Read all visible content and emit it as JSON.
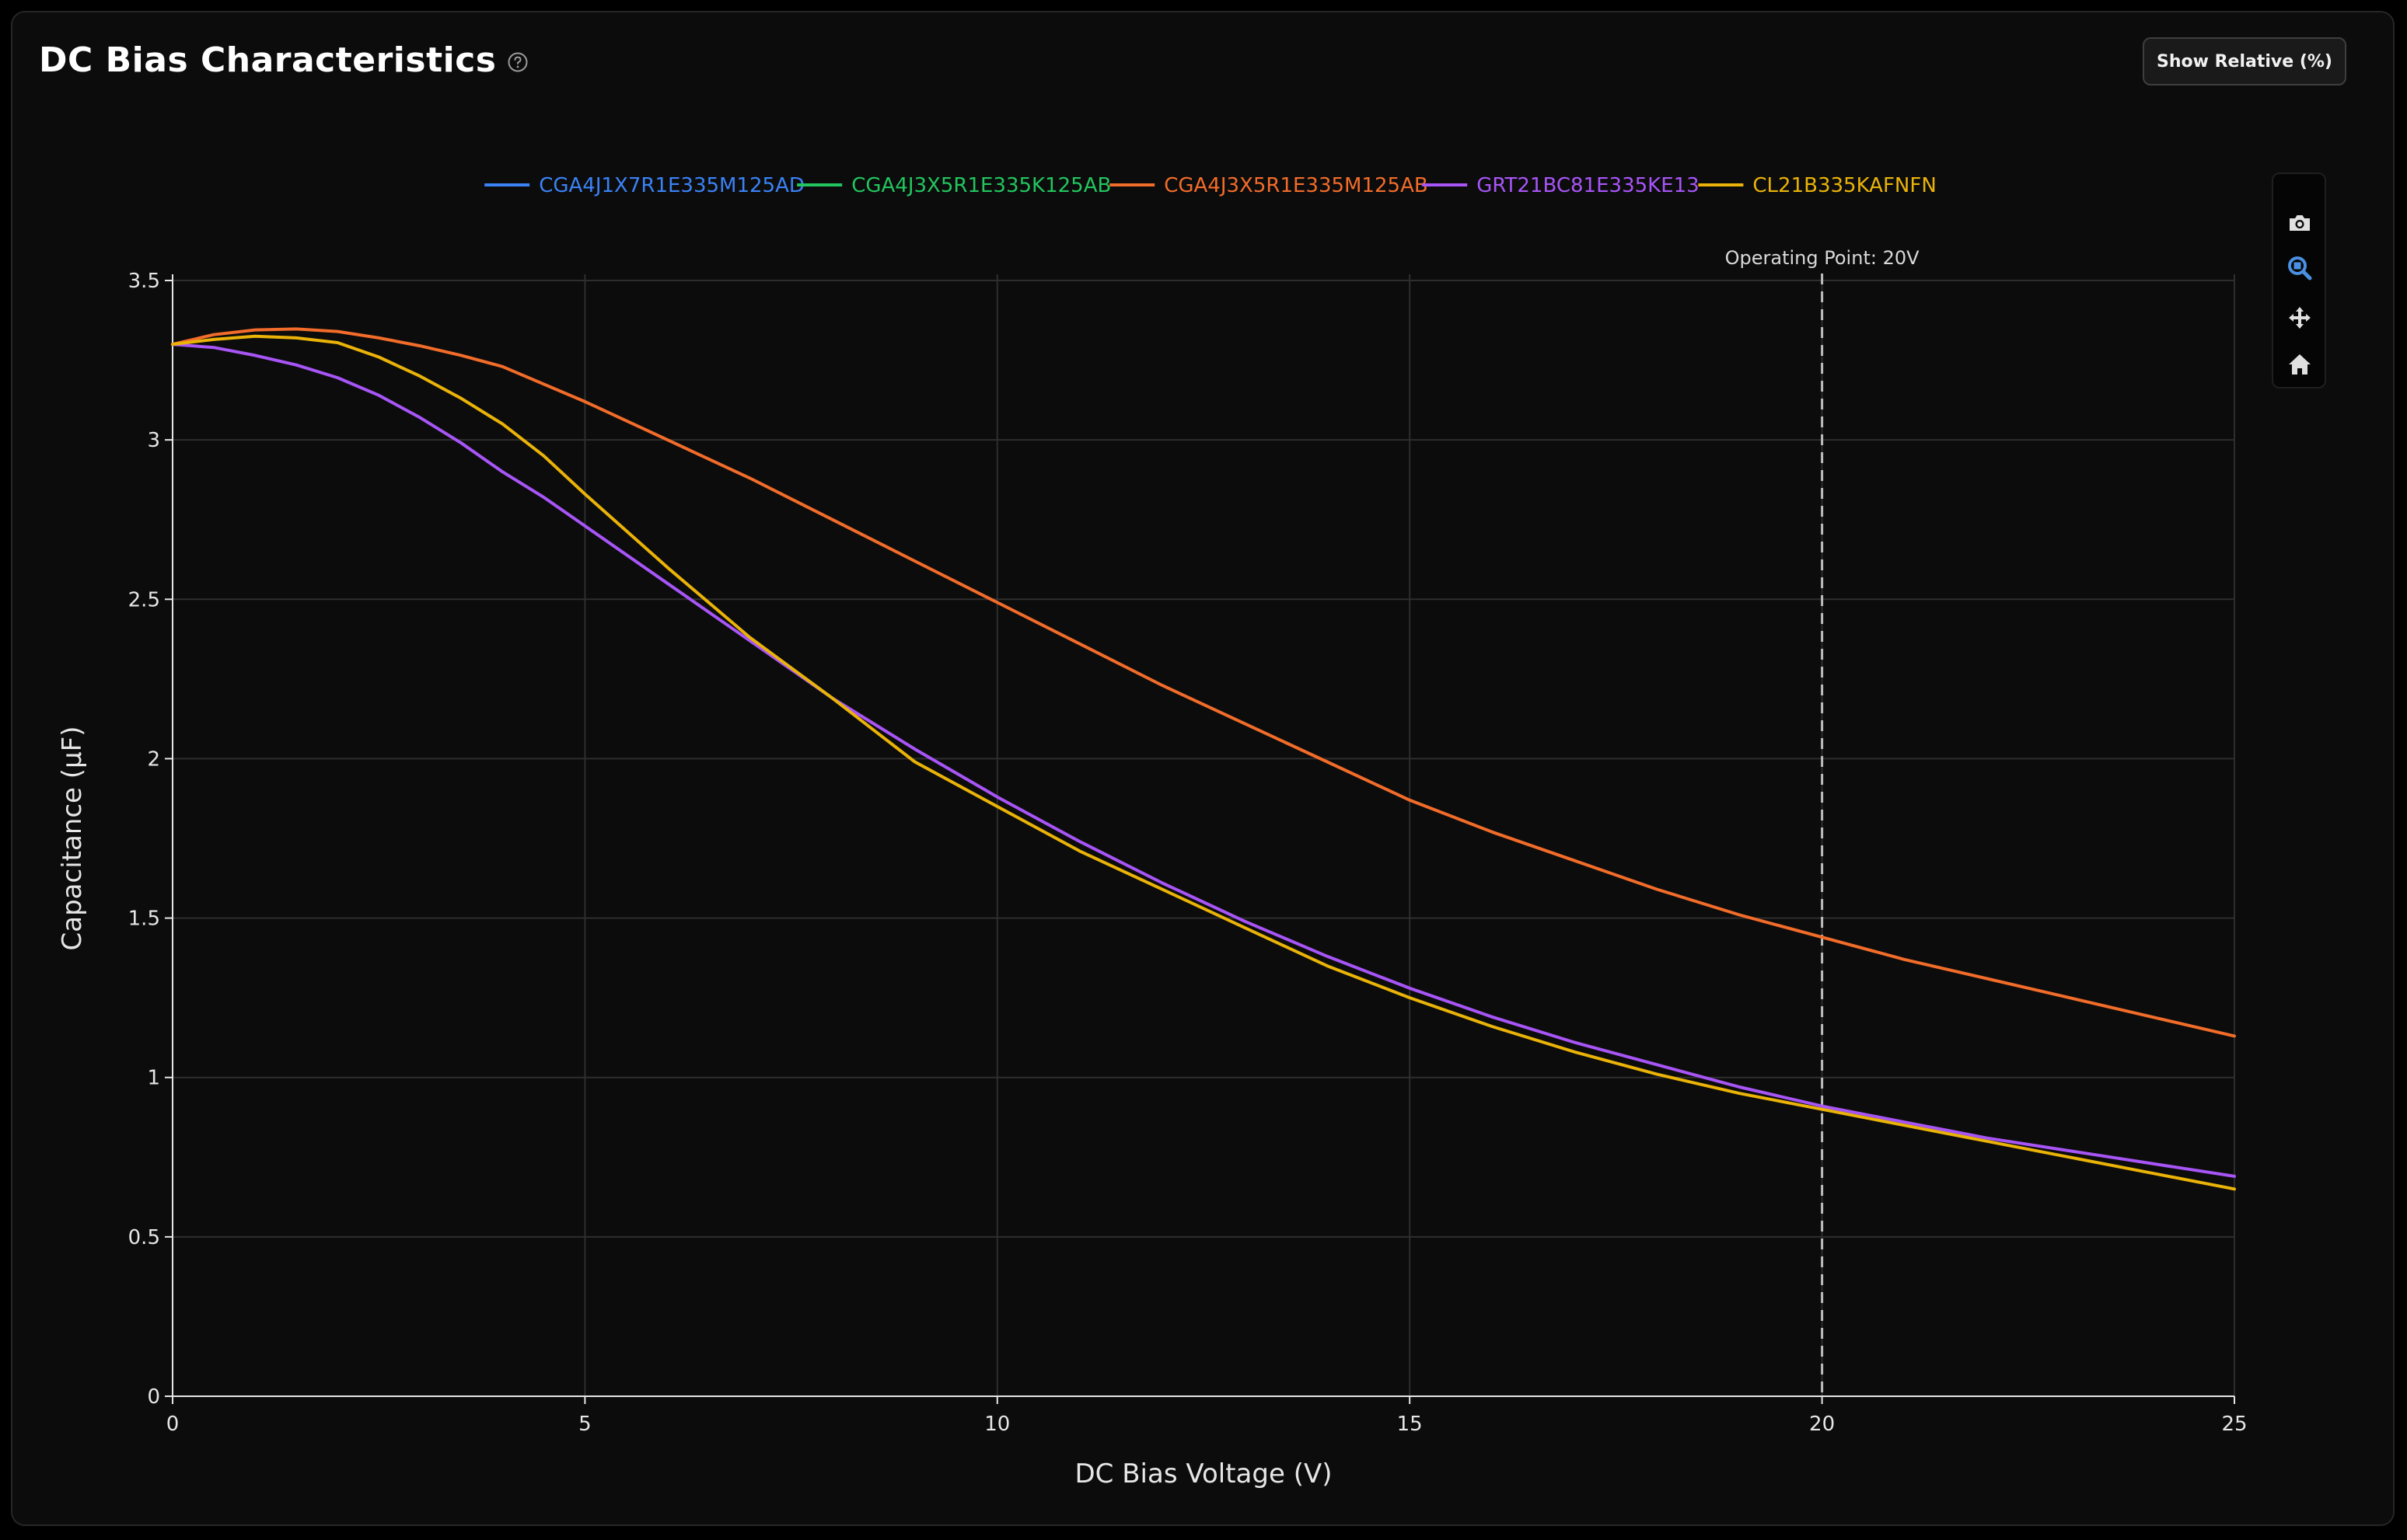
{
  "header": {
    "title": "DC Bias Characteristics",
    "toggle_label": "Show Relative (%)"
  },
  "toolbar": {
    "icons": [
      "camera-icon",
      "zoom-icon",
      "pan-icon",
      "home-icon"
    ],
    "active_icon": "zoom-icon"
  },
  "colors": {
    "background": "#0c0c0c",
    "grid": "#2e2e2e",
    "axis": "#e6e6e6",
    "active_tool": "#4a90e2"
  },
  "chart_data": {
    "type": "line",
    "xlabel": "DC Bias Voltage (V)",
    "ylabel": "Capacitance (µF)",
    "xlim": [
      0,
      25
    ],
    "ylim": [
      0,
      3.5
    ],
    "xticks": [
      0,
      5,
      10,
      15,
      20,
      25
    ],
    "yticks": [
      0,
      0.5,
      1,
      1.5,
      2,
      2.5,
      3,
      3.5
    ],
    "ytick_labels": [
      "0",
      "0.5",
      "1",
      "1.5",
      "2",
      "2.5",
      "3",
      "3.5"
    ],
    "grid": true,
    "legend_position": "top-center",
    "annotation": {
      "x": 20,
      "label": "Operating Point: 20V"
    },
    "series": [
      {
        "name": "CGA4J1X7R1E335M125AD",
        "color": "#3b82f6",
        "x": [],
        "y": []
      },
      {
        "name": "CGA4J3X5R1E335K125AB",
        "color": "#22c55e",
        "x": [],
        "y": []
      },
      {
        "name": "CGA4J3X5R1E335M125AB",
        "color": "#f26c2a",
        "x": [
          0,
          0.5,
          1,
          1.5,
          2,
          2.5,
          3,
          3.5,
          4,
          5,
          6,
          7,
          8,
          9,
          10,
          11,
          12,
          13,
          14,
          15,
          16,
          17,
          18,
          19,
          20,
          21,
          22,
          23,
          24,
          25
        ],
        "y": [
          3.3,
          3.33,
          3.345,
          3.348,
          3.34,
          3.32,
          3.295,
          3.265,
          3.23,
          3.12,
          3.0,
          2.88,
          2.75,
          2.62,
          2.49,
          2.36,
          2.23,
          2.11,
          1.99,
          1.87,
          1.77,
          1.68,
          1.59,
          1.51,
          1.44,
          1.37,
          1.31,
          1.25,
          1.19,
          1.13
        ]
      },
      {
        "name": "GRT21BC81E335KE13",
        "color": "#a855f7",
        "x": [
          0,
          0.5,
          1,
          1.5,
          2,
          2.5,
          3,
          3.5,
          4,
          4.5,
          5,
          6,
          7,
          8,
          9,
          10,
          11,
          12,
          13,
          14,
          15,
          16,
          17,
          18,
          19,
          20,
          21,
          22,
          23,
          24,
          25
        ],
        "y": [
          3.3,
          3.29,
          3.265,
          3.235,
          3.195,
          3.14,
          3.07,
          2.99,
          2.9,
          2.82,
          2.73,
          2.55,
          2.37,
          2.19,
          2.03,
          1.88,
          1.74,
          1.61,
          1.49,
          1.38,
          1.28,
          1.19,
          1.11,
          1.04,
          0.97,
          0.91,
          0.86,
          0.81,
          0.77,
          0.73,
          0.69
        ]
      },
      {
        "name": "CL21B335KAFNFN",
        "color": "#eab308",
        "x": [
          0,
          0.5,
          1,
          1.5,
          2,
          2.5,
          3,
          3.5,
          4,
          4.5,
          5,
          6,
          7,
          8,
          9,
          10,
          11,
          12,
          13,
          14,
          15,
          16,
          17,
          18,
          19,
          20,
          21,
          22,
          23,
          24,
          25
        ],
        "y": [
          3.3,
          3.315,
          3.325,
          3.32,
          3.305,
          3.26,
          3.2,
          3.13,
          3.05,
          2.95,
          2.83,
          2.6,
          2.38,
          2.19,
          1.99,
          1.85,
          1.71,
          1.59,
          1.47,
          1.35,
          1.25,
          1.16,
          1.08,
          1.01,
          0.95,
          0.9,
          0.85,
          0.8,
          0.75,
          0.7,
          0.65
        ]
      }
    ]
  }
}
